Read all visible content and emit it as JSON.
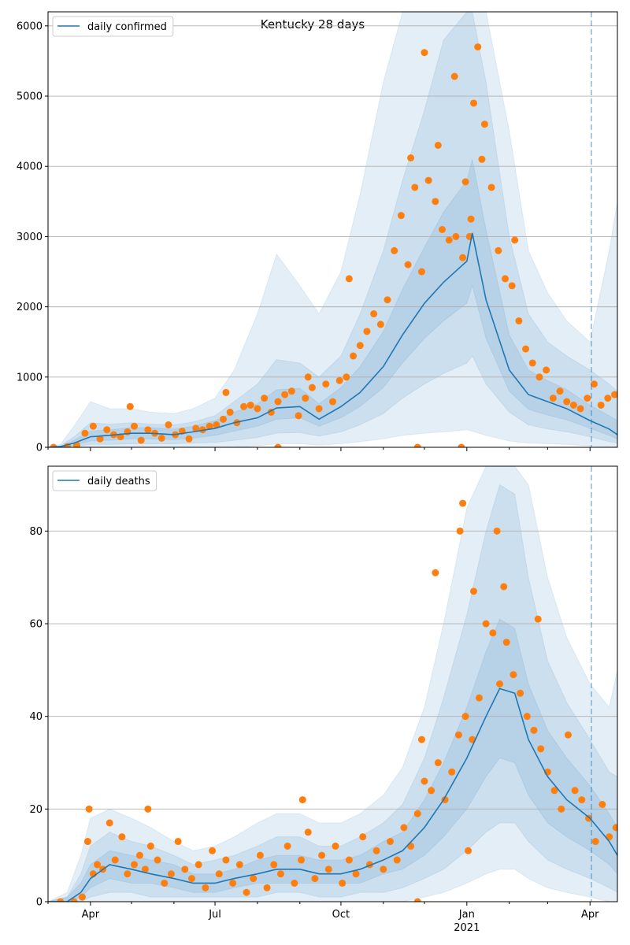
{
  "title": "Kentucky 28 days",
  "colors": {
    "line": "#1f77b4",
    "points": "#ff7f0e",
    "band": "#1f77b4",
    "grid": "#b0b0b0",
    "forecast_line": "#1f77b4"
  },
  "x_axis": {
    "start_date": "2020-03-01",
    "end_date": "2021-04-21",
    "month_ticks": [
      "2020-03-01",
      "2020-04-01",
      "2020-05-01",
      "2020-06-01",
      "2020-07-01",
      "2020-08-01",
      "2020-09-01",
      "2020-10-01",
      "2020-11-01",
      "2020-12-01",
      "2021-01-01",
      "2021-02-01",
      "2021-03-01",
      "2021-04-01"
    ],
    "labeled_ticks": [
      {
        "date": "2020-04-01",
        "label": "Apr"
      },
      {
        "date": "2020-07-01",
        "label": "Jul"
      },
      {
        "date": "2020-10-01",
        "label": "Oct"
      },
      {
        "date": "2021-01-01",
        "label": "Jan"
      },
      {
        "date": "2021-04-01",
        "label": "Apr"
      }
    ],
    "year_label": "2021",
    "forecast_start": "2021-04-02"
  },
  "chart_data": [
    {
      "type": "line",
      "legend": "daily confirmed",
      "legend_position": "top-left",
      "grid": true,
      "ylim": [
        0,
        6200
      ],
      "yticks": [
        0,
        1000,
        2000,
        3000,
        4000,
        5000,
        6000
      ],
      "line": {
        "x": [
          "2020-03-01",
          "2020-03-10",
          "2020-03-20",
          "2020-04-01",
          "2020-04-15",
          "2020-05-01",
          "2020-05-15",
          "2020-06-01",
          "2020-06-15",
          "2020-07-01",
          "2020-07-15",
          "2020-08-01",
          "2020-08-15",
          "2020-09-01",
          "2020-09-15",
          "2020-10-01",
          "2020-10-15",
          "2020-11-01",
          "2020-11-15",
          "2020-12-01",
          "2020-12-15",
          "2021-01-01",
          "2021-01-05",
          "2021-01-15",
          "2021-02-01",
          "2021-02-15",
          "2021-03-01",
          "2021-03-15",
          "2021-04-01",
          "2021-04-15",
          "2021-04-21"
        ],
        "y": [
          0,
          10,
          60,
          150,
          170,
          200,
          200,
          180,
          220,
          270,
          350,
          420,
          560,
          580,
          400,
          580,
          780,
          1150,
          1600,
          2050,
          2350,
          2650,
          3050,
          2100,
          1100,
          750,
          650,
          550,
          380,
          260,
          180
        ]
      },
      "bands": [
        {
          "level": "outer",
          "lower": [
            0,
            0,
            0,
            0,
            0,
            0,
            0,
            0,
            0,
            0,
            0,
            20,
            50,
            50,
            30,
            50,
            80,
            120,
            170,
            200,
            220,
            250,
            230,
            170,
            90,
            60,
            50,
            40,
            20,
            10,
            5
          ],
          "upper": [
            0,
            40,
            300,
            650,
            550,
            550,
            500,
            480,
            550,
            700,
            1100,
            1900,
            2750,
            2300,
            1900,
            2500,
            3600,
            5200,
            6500,
            7500,
            8500,
            9000,
            9000,
            7500,
            4500,
            2800,
            2200,
            1800,
            1500,
            2800,
            3500
          ]
        },
        {
          "level": "middle",
          "lower": [
            0,
            0,
            10,
            40,
            40,
            50,
            50,
            50,
            60,
            70,
            100,
            140,
            200,
            210,
            160,
            220,
            320,
            480,
            700,
            900,
            1050,
            1200,
            1300,
            900,
            500,
            320,
            260,
            220,
            150,
            80,
            60
          ],
          "upper": [
            0,
            20,
            150,
            350,
            330,
            350,
            330,
            320,
            360,
            450,
            650,
            900,
            1250,
            1200,
            1000,
            1300,
            1900,
            2800,
            3800,
            4800,
            5800,
            6300,
            6500,
            5200,
            3000,
            1900,
            1500,
            1300,
            1100,
            900,
            800
          ]
        },
        {
          "level": "inner",
          "lower": [
            0,
            5,
            30,
            90,
            100,
            120,
            120,
            110,
            130,
            170,
            230,
            300,
            400,
            420,
            300,
            420,
            580,
            850,
            1200,
            1550,
            1800,
            2050,
            2300,
            1550,
            800,
            540,
            460,
            390,
            270,
            170,
            120
          ],
          "upper": [
            0,
            15,
            100,
            230,
            250,
            280,
            280,
            260,
            300,
            380,
            500,
            620,
            820,
            840,
            620,
            850,
            1150,
            1650,
            2250,
            2850,
            3350,
            3800,
            4100,
            3100,
            1600,
            1100,
            950,
            820,
            600,
            450,
            380
          ]
        }
      ],
      "points": {
        "x": [
          "2020-03-05",
          "2020-03-15",
          "2020-03-22",
          "2020-03-28",
          "2020-04-03",
          "2020-04-08",
          "2020-04-13",
          "2020-04-18",
          "2020-04-23",
          "2020-04-28",
          "2020-05-03",
          "2020-05-08",
          "2020-05-13",
          "2020-05-18",
          "2020-05-23",
          "2020-05-28",
          "2020-06-02",
          "2020-06-07",
          "2020-06-12",
          "2020-06-17",
          "2020-06-22",
          "2020-06-27",
          "2020-07-02",
          "2020-07-07",
          "2020-07-12",
          "2020-07-17",
          "2020-07-22",
          "2020-07-27",
          "2020-08-01",
          "2020-08-06",
          "2020-08-11",
          "2020-08-16",
          "2020-08-21",
          "2020-08-26",
          "2020-08-31",
          "2020-09-05",
          "2020-09-10",
          "2020-09-15",
          "2020-09-20",
          "2020-09-25",
          "2020-09-30",
          "2020-10-05",
          "2020-10-10",
          "2020-10-15",
          "2020-10-20",
          "2020-10-25",
          "2020-10-30",
          "2020-11-04",
          "2020-11-09",
          "2020-11-14",
          "2020-11-19",
          "2020-11-24",
          "2020-11-29",
          "2020-12-04",
          "2020-12-09",
          "2020-12-14",
          "2020-12-19",
          "2020-12-24",
          "2020-12-29",
          "2021-01-03",
          "2021-01-06",
          "2021-01-09",
          "2021-01-14",
          "2021-01-19",
          "2021-01-24",
          "2021-01-29",
          "2021-02-03",
          "2021-02-08",
          "2021-02-13",
          "2021-02-18",
          "2021-02-23",
          "2021-02-28",
          "2021-03-05",
          "2021-03-10",
          "2021-03-15",
          "2021-03-20",
          "2021-03-25",
          "2021-03-30",
          "2021-04-04",
          "2021-04-09",
          "2021-04-14",
          "2021-04-19",
          "2020-04-30",
          "2020-07-09",
          "2020-09-07",
          "2020-10-07",
          "2020-11-21",
          "2020-12-01",
          "2020-12-11",
          "2020-12-23",
          "2020-12-31",
          "2021-01-04",
          "2021-01-12",
          "2021-02-05",
          "2020-08-16",
          "2020-11-26",
          "2020-12-28"
        ],
        "y": [
          0,
          10,
          30,
          200,
          300,
          120,
          250,
          180,
          150,
          220,
          300,
          100,
          250,
          200,
          130,
          320,
          180,
          230,
          120,
          270,
          250,
          300,
          320,
          400,
          500,
          350,
          580,
          600,
          550,
          700,
          500,
          650,
          750,
          800,
          450,
          700,
          850,
          550,
          900,
          650,
          950,
          1000,
          1300,
          1450,
          1650,
          1900,
          1750,
          2100,
          2800,
          3300,
          2600,
          3700,
          2500,
          3800,
          3500,
          3100,
          2950,
          3000,
          2700,
          3000,
          4900,
          5700,
          4600,
          3700,
          2800,
          2400,
          2300,
          1800,
          1400,
          1200,
          1000,
          1100,
          700,
          800,
          650,
          600,
          550,
          700,
          900,
          600,
          700,
          750,
          580,
          780,
          1000,
          2400,
          4120,
          5620,
          4300,
          5280,
          3780,
          3250,
          4100,
          2950,
          0,
          0,
          0
        ]
      }
    },
    {
      "type": "line",
      "legend": "daily deaths",
      "legend_position": "top-left",
      "grid": true,
      "ylim": [
        0,
        94
      ],
      "yticks": [
        0,
        20,
        40,
        60,
        80
      ],
      "line": {
        "x": [
          "2020-03-01",
          "2020-03-15",
          "2020-03-25",
          "2020-04-01",
          "2020-04-15",
          "2020-05-01",
          "2020-05-15",
          "2020-06-01",
          "2020-06-15",
          "2020-07-01",
          "2020-07-15",
          "2020-08-01",
          "2020-08-15",
          "2020-09-01",
          "2020-09-15",
          "2020-10-01",
          "2020-10-15",
          "2020-11-01",
          "2020-11-15",
          "2020-12-01",
          "2020-12-15",
          "2021-01-01",
          "2021-01-15",
          "2021-01-25",
          "2021-02-05",
          "2021-02-15",
          "2021-03-01",
          "2021-03-15",
          "2021-04-01",
          "2021-04-15",
          "2021-04-21"
        ],
        "y": [
          0,
          0,
          2,
          5,
          8,
          7,
          6,
          5,
          4,
          4,
          5,
          6,
          7,
          7,
          6,
          6,
          7,
          9,
          11,
          16,
          22,
          31,
          40,
          46,
          45,
          35,
          27,
          22,
          18,
          13,
          10
        ]
      },
      "bands": [
        {
          "level": "outer",
          "lower": [
            0,
            0,
            0,
            0,
            0,
            0,
            0,
            0,
            0,
            0,
            0,
            0,
            0,
            0,
            0,
            0,
            0,
            0,
            0,
            1,
            2,
            4,
            6,
            7,
            7,
            5,
            3,
            2,
            1,
            0,
            0
          ],
          "upper": [
            0,
            2,
            10,
            18,
            20,
            18,
            16,
            13,
            11,
            12,
            14,
            17,
            19,
            19,
            17,
            17,
            19,
            23,
            29,
            42,
            60,
            85,
            100,
            110,
            110,
            90,
            70,
            57,
            47,
            42,
            50
          ]
        },
        {
          "level": "middle",
          "lower": [
            0,
            0,
            0,
            1,
            2,
            2,
            1,
            1,
            1,
            1,
            1,
            1,
            2,
            2,
            1,
            1,
            2,
            2,
            3,
            5,
            7,
            11,
            15,
            17,
            17,
            13,
            9,
            7,
            5,
            3,
            2
          ],
          "upper": [
            0,
            1,
            6,
            12,
            15,
            13,
            12,
            10,
            8,
            9,
            10,
            12,
            14,
            14,
            12,
            12,
            14,
            17,
            21,
            31,
            44,
            62,
            80,
            90,
            88,
            70,
            52,
            43,
            35,
            28,
            27
          ]
        },
        {
          "level": "inner",
          "lower": [
            0,
            0,
            1,
            3,
            5,
            4,
            4,
            3,
            2,
            2,
            3,
            4,
            4,
            4,
            4,
            4,
            4,
            6,
            7,
            10,
            14,
            20,
            27,
            31,
            30,
            23,
            17,
            14,
            11,
            8,
            6
          ],
          "upper": [
            0,
            1,
            4,
            8,
            11,
            10,
            9,
            8,
            6,
            6,
            7,
            9,
            10,
            10,
            9,
            9,
            10,
            13,
            15,
            22,
            30,
            42,
            54,
            61,
            59,
            47,
            37,
            31,
            25,
            19,
            16
          ]
        }
      ],
      "points": {
        "x": [
          "2020-03-10",
          "2020-03-20",
          "2020-03-26",
          "2020-03-30",
          "2020-04-03",
          "2020-04-06",
          "2020-04-10",
          "2020-04-15",
          "2020-04-19",
          "2020-04-24",
          "2020-04-28",
          "2020-05-03",
          "2020-05-07",
          "2020-05-11",
          "2020-05-15",
          "2020-05-20",
          "2020-05-25",
          "2020-05-30",
          "2020-06-04",
          "2020-06-09",
          "2020-06-14",
          "2020-06-19",
          "2020-06-24",
          "2020-06-29",
          "2020-07-04",
          "2020-07-09",
          "2020-07-14",
          "2020-07-19",
          "2020-07-24",
          "2020-07-29",
          "2020-08-03",
          "2020-08-08",
          "2020-08-13",
          "2020-08-18",
          "2020-08-23",
          "2020-08-28",
          "2020-09-02",
          "2020-09-07",
          "2020-09-12",
          "2020-09-17",
          "2020-09-22",
          "2020-09-27",
          "2020-10-02",
          "2020-10-07",
          "2020-10-12",
          "2020-10-17",
          "2020-10-22",
          "2020-10-27",
          "2020-11-01",
          "2020-11-06",
          "2020-11-11",
          "2020-11-16",
          "2020-11-21",
          "2020-11-26",
          "2020-12-01",
          "2020-12-06",
          "2020-12-11",
          "2020-12-16",
          "2020-12-21",
          "2020-12-26",
          "2020-12-31",
          "2021-01-05",
          "2021-01-10",
          "2021-01-15",
          "2021-01-20",
          "2021-01-25",
          "2021-01-30",
          "2021-02-04",
          "2021-02-09",
          "2021-02-14",
          "2021-02-19",
          "2021-02-24",
          "2021-03-01",
          "2021-03-06",
          "2021-03-11",
          "2021-03-16",
          "2021-03-21",
          "2021-03-26",
          "2021-03-31",
          "2021-04-05",
          "2021-04-10",
          "2021-04-15",
          "2021-04-20",
          "2020-03-31",
          "2020-05-13",
          "2020-09-03",
          "2020-11-29",
          "2020-12-27",
          "2020-12-29",
          "2021-01-06",
          "2021-01-23",
          "2021-01-28",
          "2021-02-22",
          "2020-12-09",
          "2020-11-26",
          "2021-01-02"
        ],
        "y": [
          0,
          0,
          1,
          13,
          6,
          8,
          7,
          17,
          9,
          14,
          6,
          8,
          10,
          7,
          12,
          9,
          4,
          6,
          13,
          7,
          5,
          8,
          3,
          11,
          6,
          9,
          4,
          8,
          2,
          5,
          10,
          3,
          8,
          6,
          12,
          4,
          9,
          15,
          5,
          10,
          7,
          12,
          4,
          9,
          6,
          14,
          8,
          11,
          7,
          13,
          9,
          16,
          12,
          19,
          26,
          24,
          30,
          22,
          28,
          36,
          40,
          35,
          44,
          60,
          58,
          47,
          56,
          49,
          45,
          40,
          37,
          33,
          28,
          24,
          20,
          36,
          24,
          22,
          18,
          13,
          21,
          14,
          16,
          20,
          20,
          22,
          35,
          80,
          86,
          67,
          80,
          68,
          61,
          71,
          0,
          11
        ]
      }
    }
  ]
}
